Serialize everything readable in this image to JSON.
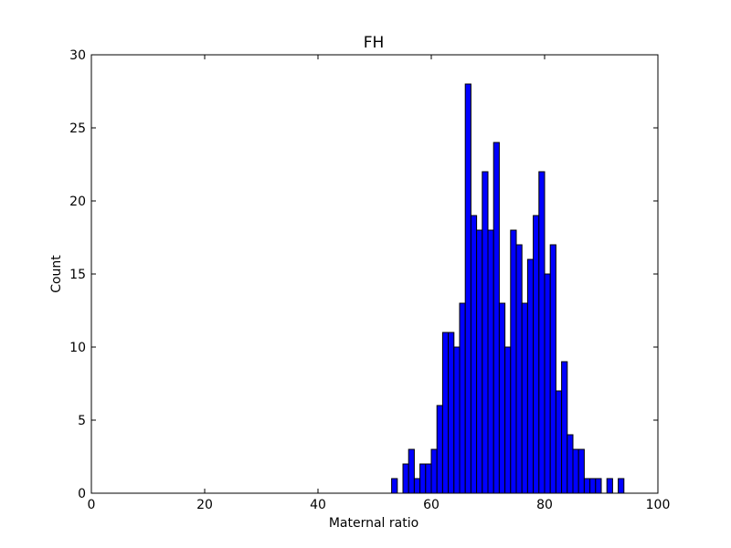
{
  "chart_data": {
    "type": "bar",
    "title": "FH",
    "xlabel": "Maternal ratio",
    "ylabel": "Count",
    "xlim": [
      0,
      100
    ],
    "ylim": [
      0,
      30
    ],
    "xticks": [
      0,
      20,
      40,
      60,
      80,
      100
    ],
    "yticks": [
      0,
      5,
      10,
      15,
      20,
      25,
      30
    ],
    "grid": false,
    "bar_color": "#0000ff",
    "edge_color": "#000000",
    "bin_width": 1,
    "x": [
      53.5,
      55.5,
      56.5,
      57.5,
      58.5,
      59.5,
      60.5,
      61.5,
      62.5,
      63.5,
      64.5,
      65.5,
      66.5,
      67.5,
      68.5,
      69.5,
      70.5,
      71.5,
      72.5,
      73.5,
      74.5,
      75.5,
      76.5,
      77.5,
      78.5,
      79.5,
      80.5,
      81.5,
      82.5,
      83.5,
      84.5,
      85.5,
      86.5,
      87.5,
      88.5,
      89.5,
      91.5,
      93.5
    ],
    "values": [
      1,
      2,
      3,
      1,
      2,
      2,
      3,
      6,
      11,
      11,
      10,
      13,
      28,
      19,
      18,
      22,
      18,
      24,
      13,
      10,
      18,
      17,
      13,
      16,
      19,
      22,
      15,
      17,
      7,
      9,
      4,
      3,
      3,
      1,
      1,
      1,
      1,
      1
    ]
  }
}
